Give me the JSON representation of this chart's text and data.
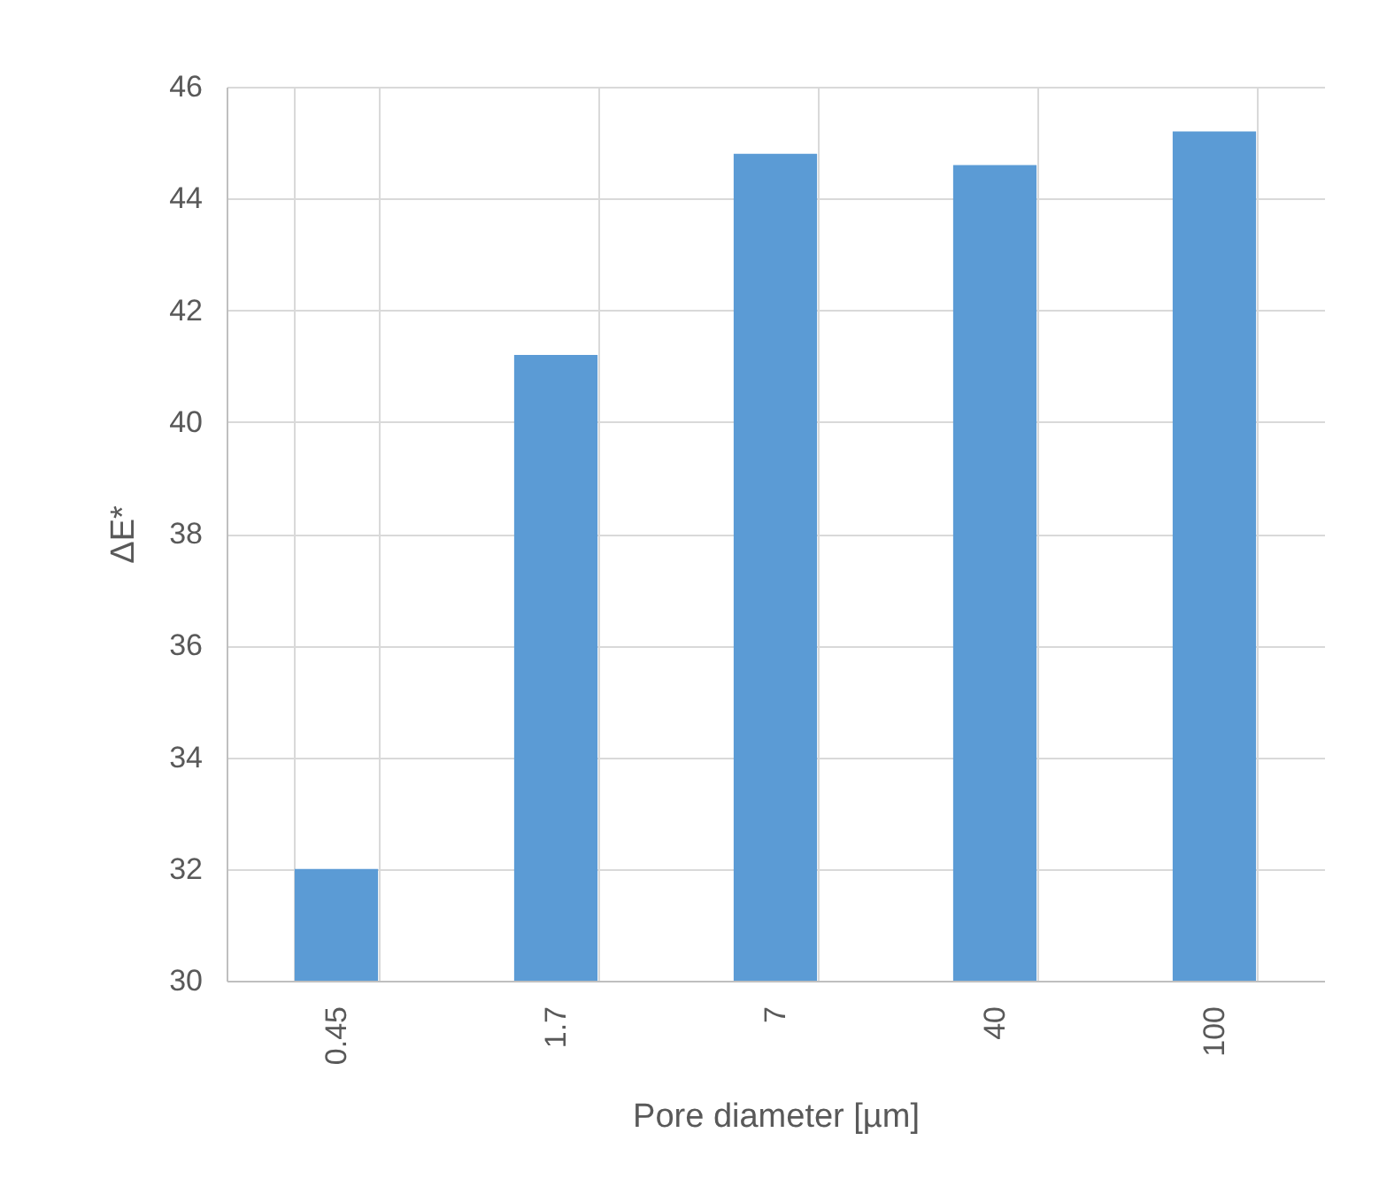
{
  "chart_data": {
    "type": "bar",
    "xlabel": "Pore diameter [µm]",
    "ylabel": "ΔE*",
    "categories": [
      "0.45",
      "1.7",
      "7",
      "40",
      "100"
    ],
    "values": [
      32,
      41.2,
      44.8,
      44.6,
      45.2
    ],
    "color": "#5b9bd5",
    "ylim": [
      30,
      46
    ],
    "yticks": [
      30,
      32,
      34,
      36,
      38,
      40,
      42,
      44,
      46
    ],
    "grid": true
  }
}
